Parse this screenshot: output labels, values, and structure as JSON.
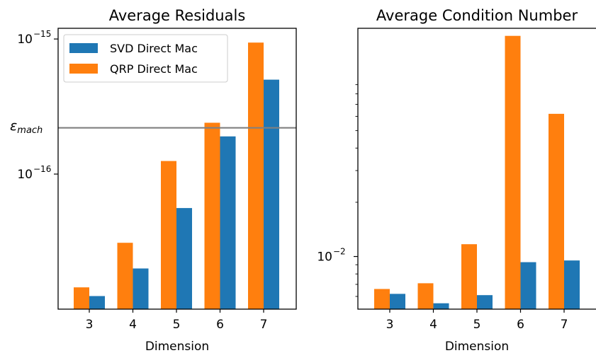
{
  "colors": {
    "svd": "#1f77b4",
    "qrp": "#ff7f0e",
    "reference_line": "#808080"
  },
  "chart_data": [
    {
      "type": "bar",
      "title": "Average Residuals",
      "xlabel": "Dimension",
      "ylabel": "",
      "yscale": "log",
      "categories": [
        "3",
        "4",
        "5",
        "6",
        "7"
      ],
      "ylim": [
        1e-17,
        1.2e-15
      ],
      "yticks": [
        {
          "value": 1e-15,
          "base": "10",
          "exp": "−15"
        },
        {
          "value": 1e-16,
          "base": "10",
          "exp": "−16"
        }
      ],
      "series": [
        {
          "name": "SVD Direct Mac",
          "values": [
            1.25e-17,
            2e-17,
            5.6e-17,
            1.9e-16,
            5e-16
          ]
        },
        {
          "name": "QRP Direct Mac",
          "values": [
            1.45e-17,
            3.1e-17,
            1.25e-16,
            2.4e-16,
            9.4e-16
          ]
        }
      ],
      "reference_line": {
        "label_main": "ε",
        "label_sub": "mach",
        "value": 2.2e-16
      },
      "legend": "top-left",
      "grid": false
    },
    {
      "type": "bar",
      "title": "Average Condition Number",
      "xlabel": "Dimension",
      "ylabel": "",
      "yscale": "log",
      "categories": [
        "3",
        "4",
        "5",
        "6",
        "7"
      ],
      "ylim": [
        0.0051,
        0.185
      ],
      "yticks": [
        {
          "value": 0.01,
          "base": "10",
          "exp": "−2"
        }
      ],
      "minor_ticks": [
        0.006,
        0.007,
        0.008,
        0.009,
        0.02,
        0.03,
        0.04,
        0.05,
        0.06,
        0.07,
        0.08,
        0.09
      ],
      "series": [
        {
          "name": "SVD Direct Mac",
          "values": [
            0.0062,
            0.0055,
            0.0061,
            0.0093,
            0.0095
          ]
        },
        {
          "name": "QRP Direct Mac",
          "values": [
            0.0066,
            0.0071,
            0.0117,
            0.168,
            0.062
          ]
        }
      ],
      "legend": "none",
      "grid": false
    }
  ]
}
